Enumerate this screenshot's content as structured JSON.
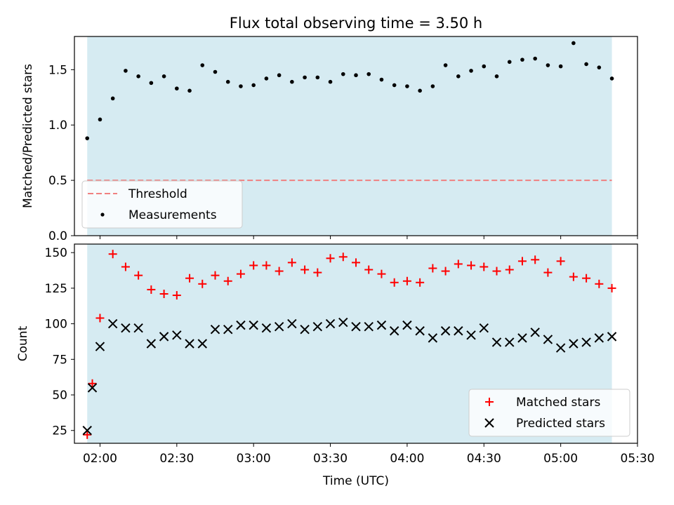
{
  "chart_data": [
    {
      "type": "scatter",
      "title": "Flux total observing time = 3.50 h",
      "xlabel": "",
      "ylabel": "Matched/Predicted stars",
      "ylim": [
        0,
        1.8
      ],
      "yticks": [
        "0.0",
        "0.5",
        "1.0",
        "1.5"
      ],
      "xlim": [
        "01:50",
        "05:30"
      ],
      "shaded_span": [
        "01:55",
        "05:20"
      ],
      "shade_color": "#add8e6",
      "threshold": {
        "name": "Threshold",
        "y": 0.5,
        "x": [
          "01:55",
          "05:20"
        ],
        "color": "#f08080",
        "style": "dashed"
      },
      "series": [
        {
          "name": "Measurements",
          "color": "#000000",
          "marker": "dot",
          "x": [
            "01:55",
            "02:00",
            "02:05",
            "02:10",
            "02:15",
            "02:20",
            "02:25",
            "02:30",
            "02:35",
            "02:40",
            "02:45",
            "02:50",
            "02:55",
            "03:00",
            "03:05",
            "03:10",
            "03:15",
            "03:20",
            "03:25",
            "03:30",
            "03:35",
            "03:40",
            "03:45",
            "03:50",
            "03:55",
            "04:00",
            "04:05",
            "04:10",
            "04:15",
            "04:20",
            "04:25",
            "04:30",
            "04:35",
            "04:40",
            "04:45",
            "04:50",
            "04:55",
            "05:00",
            "05:05",
            "05:10",
            "05:15",
            "05:20"
          ],
          "y": [
            0.88,
            1.05,
            1.24,
            1.49,
            1.44,
            1.38,
            1.44,
            1.33,
            1.31,
            1.54,
            1.48,
            1.39,
            1.35,
            1.36,
            1.42,
            1.45,
            1.39,
            1.43,
            1.43,
            1.39,
            1.46,
            1.45,
            1.46,
            1.41,
            1.36,
            1.35,
            1.31,
            1.35,
            1.54,
            1.44,
            1.49,
            1.53,
            1.44,
            1.57,
            1.59,
            1.6,
            1.54,
            1.53,
            1.74,
            1.55,
            1.52,
            1.42
          ]
        }
      ],
      "legend": "lower-left"
    },
    {
      "type": "scatter",
      "xlabel": "Time (UTC)",
      "ylabel": "Count",
      "ylim": [
        16,
        156
      ],
      "yticks": [
        "25",
        "50",
        "75",
        "100",
        "125",
        "150"
      ],
      "xlim": [
        "01:50",
        "05:30"
      ],
      "xticks": [
        "02:00",
        "02:30",
        "03:00",
        "03:30",
        "04:00",
        "04:30",
        "05:00",
        "05:30"
      ],
      "shaded_span": [
        "01:55",
        "05:20"
      ],
      "shade_color": "#add8e6",
      "series": [
        {
          "name": "Matched stars",
          "color": "#ff0000",
          "marker": "plus",
          "x": [
            "01:55",
            "01:57",
            "02:00",
            "02:05",
            "02:10",
            "02:15",
            "02:20",
            "02:25",
            "02:30",
            "02:35",
            "02:40",
            "02:45",
            "02:50",
            "02:55",
            "03:00",
            "03:05",
            "03:10",
            "03:15",
            "03:20",
            "03:25",
            "03:30",
            "03:35",
            "03:40",
            "03:45",
            "03:50",
            "03:55",
            "04:00",
            "04:05",
            "04:10",
            "04:15",
            "04:20",
            "04:25",
            "04:30",
            "04:35",
            "04:40",
            "04:45",
            "04:50",
            "04:55",
            "05:00",
            "05:05",
            "05:10",
            "05:15",
            "05:20"
          ],
          "y": [
            22,
            58,
            104,
            149,
            140,
            134,
            124,
            121,
            120,
            132,
            128,
            134,
            130,
            135,
            141,
            141,
            137,
            143,
            138,
            136,
            146,
            147,
            143,
            138,
            135,
            129,
            130,
            129,
            139,
            137,
            142,
            141,
            140,
            137,
            138,
            144,
            145,
            136,
            144,
            133,
            132,
            128,
            125
          ]
        },
        {
          "name": "Predicted stars",
          "color": "#000000",
          "marker": "x",
          "x": [
            "01:55",
            "01:57",
            "02:00",
            "02:05",
            "02:10",
            "02:15",
            "02:20",
            "02:25",
            "02:30",
            "02:35",
            "02:40",
            "02:45",
            "02:50",
            "02:55",
            "03:00",
            "03:05",
            "03:10",
            "03:15",
            "03:20",
            "03:25",
            "03:30",
            "03:35",
            "03:40",
            "03:45",
            "03:50",
            "03:55",
            "04:00",
            "04:05",
            "04:10",
            "04:15",
            "04:20",
            "04:25",
            "04:30",
            "04:35",
            "04:40",
            "04:45",
            "04:50",
            "04:55",
            "05:00",
            "05:05",
            "05:10",
            "05:15",
            "05:20"
          ],
          "y": [
            25,
            55,
            84,
            100,
            97,
            97,
            86,
            91,
            92,
            86,
            86,
            96,
            96,
            99,
            99,
            97,
            98,
            100,
            96,
            98,
            100,
            101,
            98,
            98,
            99,
            95,
            99,
            95,
            90,
            95,
            95,
            92,
            97,
            87,
            87,
            90,
            94,
            89,
            83,
            86,
            87,
            90,
            91
          ]
        }
      ],
      "legend": "lower-right"
    }
  ]
}
